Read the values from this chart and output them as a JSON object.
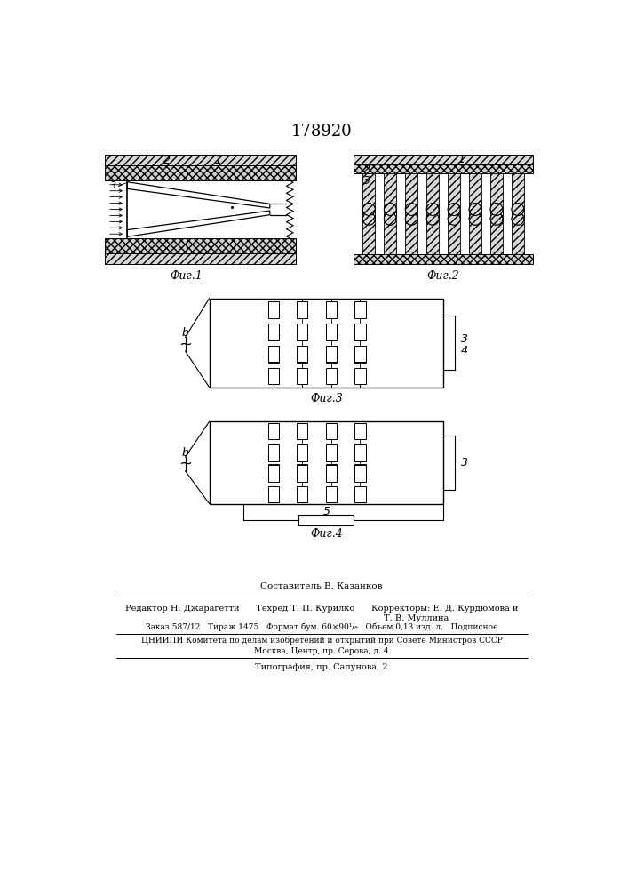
{
  "title": "178920",
  "background_color": "#ffffff",
  "fig1_label": "Фиг.1",
  "fig2_label": "Фиг.2",
  "fig3_label": "Фиг.3",
  "fig4_label": "Фиг.4",
  "patent_line1": "Составитель В. Казанков",
  "patent_line2": "Редактор Н. Джарагетти      Техред Т. П. Курилко      Корректоры: Е. Д. Курдюмова и",
  "patent_line3": "Т. В. Муллина",
  "patent_line4": "Заказ 587/12   Тираж 1475   Формат бум. 60×90¹/₈   Объем 0,13 изд. л.   Подписное",
  "patent_line5": "ЦНИИПИ Комитета по делам изобретений и открытий при Совете Министров СССР",
  "patent_line6": "Москва, Центр, пр. Серова, д. 4",
  "patent_line7": "Типография, пр. Сапунова, 2"
}
